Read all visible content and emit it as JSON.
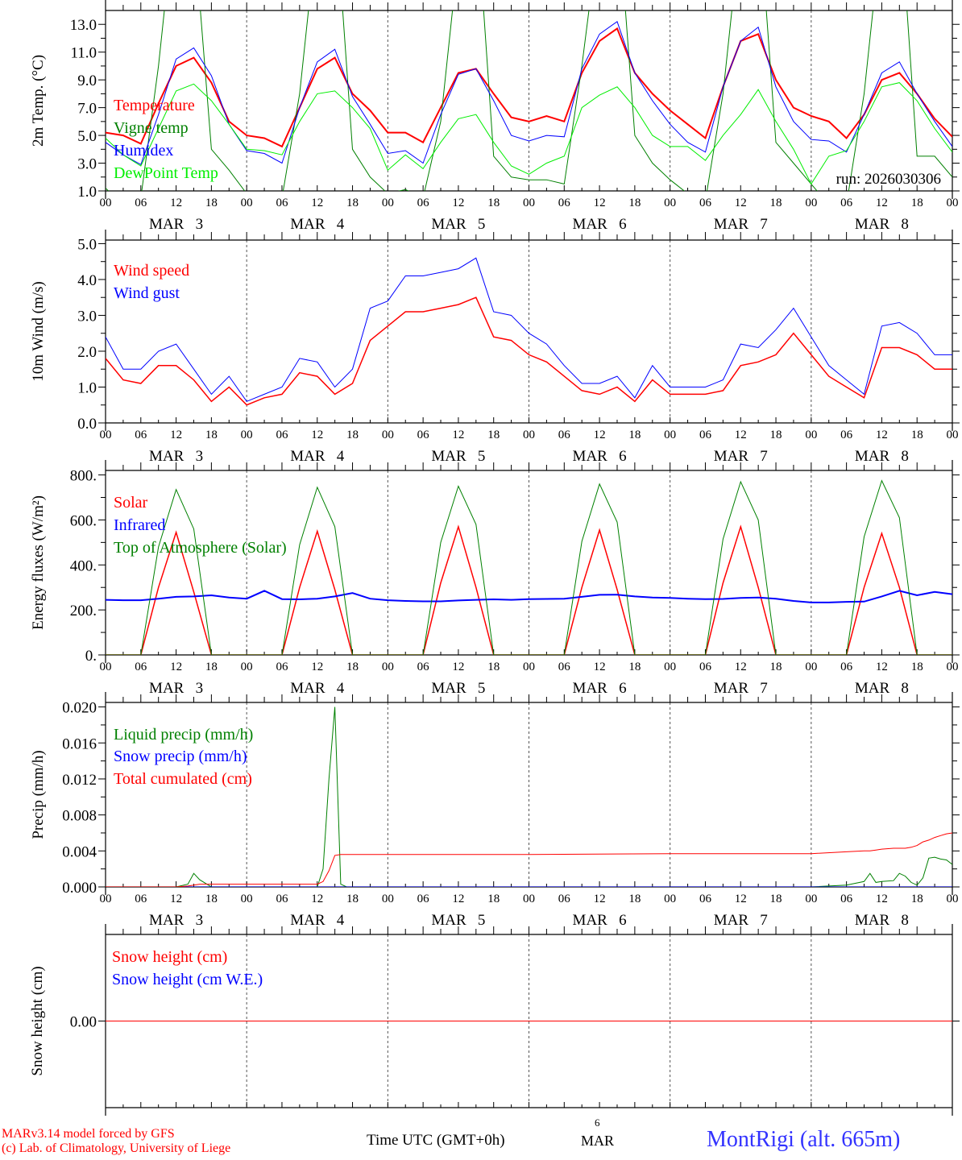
{
  "colors": {
    "red": "#ff0000",
    "blue": "#0000ff",
    "dark_green": "#008000",
    "lime": "#00ee00",
    "axis": "#000000"
  },
  "run_label": "run: 2026030306",
  "hour_labels": [
    "00",
    "06",
    "12",
    "18"
  ],
  "day_labels": [
    "MAR   3",
    "MAR   4",
    "MAR   5",
    "MAR   6",
    "MAR   7",
    "MAR   8"
  ],
  "footer": {
    "model": "MARv3.14 model forced by GFS",
    "credit": "(c) Lab. of Climatology, University of Liege",
    "xlabel": "Time UTC (GMT+0h)",
    "center_day": "6",
    "center_month": "MAR",
    "station": "MontRigi (alt. 665m)"
  },
  "chart_data": [
    {
      "type": "line",
      "id": "temperature",
      "ylabel": "2m Temp. (°C)",
      "ylim": [
        1,
        14
      ],
      "yticks": [
        1,
        3,
        5,
        7,
        9,
        11,
        13
      ],
      "ytick_labels": [
        "1.0",
        "3.0",
        "5.0",
        "7.0",
        "9.0",
        "11.0",
        "13.0"
      ],
      "x_hours_step": 3,
      "series": [
        {
          "name": "Temperature",
          "color": "#ff0000",
          "width": 2,
          "values": [
            5.2,
            5.0,
            4.4,
            7.3,
            10.0,
            10.6,
            8.8,
            6.0,
            5.0,
            4.8,
            4.2,
            7.0,
            9.8,
            10.6,
            8.0,
            6.8,
            5.2,
            5.2,
            4.5,
            7.0,
            9.5,
            9.8,
            8.0,
            6.3,
            6.0,
            6.4,
            6.0,
            9.5,
            11.8,
            12.7,
            9.5,
            8.0,
            6.8,
            5.8,
            4.8,
            8.5,
            11.8,
            12.3,
            9.0,
            7.0,
            6.4,
            6.0,
            4.8,
            6.5,
            9.0,
            9.5,
            8.0,
            6.2,
            4.9
          ]
        },
        {
          "name": "Vigne temp",
          "color": "#008000",
          "width": 1,
          "values": [
            1.2,
            0,
            0.5,
            10,
            22,
            20,
            4.0,
            2.5,
            0.8,
            0.5,
            0.5,
            8,
            20,
            22,
            4.0,
            2.0,
            0.8,
            1.1,
            0.5,
            6,
            18,
            22,
            3.5,
            2.0,
            1.8,
            1.8,
            1.5,
            10,
            20,
            22,
            5,
            3,
            1.8,
            0.8,
            0.3,
            8,
            20,
            22,
            4.5,
            3.0,
            1.5,
            0,
            0,
            8,
            20,
            22,
            3.5,
            3.5,
            2.0
          ]
        },
        {
          "name": "Humidex",
          "color": "#0000ff",
          "width": 1,
          "values": [
            4.5,
            3.6,
            2.9,
            6.5,
            10.5,
            11.3,
            9.3,
            5.8,
            3.9,
            3.7,
            3.0,
            7.0,
            10.3,
            11.2,
            7.8,
            5.8,
            3.7,
            3.9,
            3.0,
            6.5,
            9.4,
            9.8,
            7.5,
            5.0,
            4.6,
            5.0,
            4.9,
            9.8,
            12.3,
            13.2,
            9.5,
            7.5,
            5.8,
            4.5,
            3.8,
            8.5,
            11.8,
            12.8,
            8.5,
            6.0,
            4.7,
            4.6,
            3.8,
            6.5,
            9.5,
            10.3,
            8.0,
            6.0,
            4.2
          ]
        },
        {
          "name": "DewPoint Temp",
          "color": "#00ee00",
          "width": 1,
          "values": [
            4.8,
            3.6,
            2.8,
            5.5,
            8.2,
            8.7,
            7.5,
            5.8,
            4.0,
            3.9,
            3.6,
            6.0,
            8.0,
            8.2,
            7.0,
            5.5,
            2.5,
            3.6,
            2.6,
            4.5,
            6.2,
            6.5,
            4.5,
            2.8,
            2.2,
            3.0,
            3.5,
            7.0,
            7.9,
            8.5,
            7.0,
            5.0,
            4.2,
            4.2,
            3.2,
            5.0,
            6.5,
            8.3,
            6.0,
            4.0,
            1.5,
            3.5,
            3.9,
            6.0,
            8.5,
            8.8,
            7.5,
            5.5,
            3.8
          ]
        }
      ]
    },
    {
      "type": "line",
      "id": "wind",
      "ylabel": "10m Wind (m/s)",
      "ylim": [
        0,
        5.1
      ],
      "yticks": [
        0,
        1,
        2,
        3,
        4,
        5
      ],
      "ytick_labels": [
        "0.0",
        "1.0",
        "2.0",
        "3.0",
        "4.0",
        "5.0"
      ],
      "x_hours_step": 3,
      "series": [
        {
          "name": "Wind speed",
          "color": "#ff0000",
          "width": 1.5,
          "values": [
            1.8,
            1.2,
            1.1,
            1.6,
            1.6,
            1.2,
            0.6,
            1.0,
            0.5,
            0.7,
            0.8,
            1.4,
            1.3,
            0.8,
            1.1,
            2.3,
            2.7,
            3.1,
            3.1,
            3.2,
            3.3,
            3.5,
            2.4,
            2.3,
            1.9,
            1.7,
            1.3,
            0.9,
            0.8,
            1.0,
            0.6,
            1.2,
            0.8,
            0.8,
            0.8,
            0.9,
            1.6,
            1.7,
            1.9,
            2.5,
            1.9,
            1.3,
            1.0,
            0.7,
            2.1,
            2.1,
            1.9,
            1.5,
            1.5
          ]
        },
        {
          "name": "Wind gust",
          "color": "#0000ff",
          "width": 1,
          "values": [
            2.4,
            1.5,
            1.5,
            2.0,
            2.2,
            1.5,
            0.8,
            1.3,
            0.6,
            0.8,
            1.0,
            1.8,
            1.7,
            1.0,
            1.5,
            3.2,
            3.4,
            4.1,
            4.1,
            4.2,
            4.3,
            4.6,
            3.1,
            3.0,
            2.5,
            2.2,
            1.6,
            1.1,
            1.1,
            1.3,
            0.7,
            1.6,
            1.0,
            1.0,
            1.0,
            1.2,
            2.2,
            2.1,
            2.6,
            3.2,
            2.4,
            1.6,
            1.2,
            0.8,
            2.7,
            2.8,
            2.5,
            1.9,
            1.9
          ]
        }
      ]
    },
    {
      "type": "line",
      "id": "energy",
      "ylabel": "Energy fluxes (W/m²)",
      "ylim": [
        0,
        820
      ],
      "yticks": [
        0,
        200,
        400,
        600,
        800
      ],
      "ytick_labels": [
        "0.",
        "200.",
        "400.",
        "600.",
        "800."
      ],
      "x_hours_step": 3,
      "series": [
        {
          "name": "Solar",
          "color": "#ff0000",
          "width": 1.5,
          "values": [
            0,
            0,
            0,
            300,
            545,
            280,
            0,
            0,
            0,
            0,
            0,
            300,
            550,
            290,
            0,
            0,
            0,
            0,
            0,
            320,
            570,
            300,
            0,
            0,
            0,
            0,
            0,
            300,
            555,
            290,
            0,
            0,
            0,
            0,
            0,
            320,
            570,
            300,
            0,
            0,
            0,
            0,
            0,
            300,
            540,
            300,
            0,
            0,
            0
          ]
        },
        {
          "name": "Infrared",
          "color": "#0000ff",
          "width": 2,
          "values": [
            245,
            243,
            243,
            250,
            258,
            260,
            265,
            255,
            250,
            285,
            248,
            247,
            250,
            260,
            275,
            250,
            243,
            240,
            238,
            238,
            242,
            245,
            247,
            245,
            248,
            249,
            250,
            258,
            267,
            268,
            260,
            255,
            253,
            250,
            248,
            249,
            253,
            255,
            250,
            240,
            233,
            233,
            236,
            237,
            260,
            285,
            265,
            280,
            270
          ]
        },
        {
          "name": "Top of Atmosphere (Solar)",
          "color": "#008000",
          "width": 1,
          "values": [
            0,
            0,
            0,
            480,
            735,
            560,
            0,
            0,
            0,
            0,
            0,
            490,
            745,
            570,
            0,
            0,
            0,
            0,
            0,
            500,
            750,
            580,
            0,
            0,
            0,
            0,
            0,
            505,
            760,
            590,
            0,
            0,
            0,
            0,
            0,
            515,
            770,
            600,
            0,
            0,
            0,
            0,
            0,
            525,
            775,
            610,
            0,
            0,
            0
          ]
        }
      ]
    },
    {
      "type": "line",
      "id": "precip",
      "ylabel": "Precip (mm/h)",
      "ylim": [
        0,
        0.0205
      ],
      "yticks": [
        0,
        0.004,
        0.008,
        0.012,
        0.016,
        0.02
      ],
      "ytick_labels": [
        "0.000",
        "0.004",
        "0.008",
        "0.012",
        "0.016",
        "0.020"
      ],
      "x_hours": [
        0,
        12,
        14,
        15,
        16,
        18,
        24,
        36,
        37,
        38,
        39,
        40,
        41,
        42,
        48,
        72,
        96,
        120,
        126,
        129,
        130,
        131,
        132,
        134,
        135,
        136,
        137,
        138,
        139,
        140,
        141,
        142,
        143,
        144
      ],
      "series": [
        {
          "name": "Liquid precip (mm/h)",
          "color": "#008000",
          "width": 1,
          "values": [
            0,
            0,
            0.0003,
            0.0015,
            0.0008,
            0,
            0,
            0,
            0.002,
            0.012,
            0.02,
            0.0003,
            0,
            0,
            0,
            0,
            0,
            0,
            0.0002,
            0.0006,
            0.0015,
            0.0005,
            0.0006,
            0.0007,
            0.0015,
            0.0012,
            0.0005,
            0.0002,
            0.001,
            0.0032,
            0.0033,
            0.0031,
            0.003,
            0.0025
          ]
        },
        {
          "name": "Snow precip (mm/h)",
          "color": "#0000ff",
          "width": 1,
          "values": [
            0,
            0,
            0,
            0,
            0,
            0,
            0,
            0,
            0,
            0,
            0,
            0,
            0,
            0,
            0,
            0,
            0,
            0,
            0,
            0,
            0,
            0,
            0,
            0,
            0,
            0,
            0,
            0,
            0,
            0,
            0,
            0,
            0,
            0
          ]
        },
        {
          "name": "Total cumulated (cm)",
          "color": "#ff0000",
          "width": 1,
          "values": [
            0,
            0,
            0.0001,
            0.0002,
            0.0003,
            0.0003,
            0.0003,
            0.0003,
            0.0006,
            0.0018,
            0.0035,
            0.0036,
            0.0036,
            0.0036,
            0.0036,
            0.0036,
            0.0037,
            0.0037,
            0.0039,
            0.004,
            0.004,
            0.0041,
            0.0042,
            0.0043,
            0.0043,
            0.0043,
            0.0044,
            0.0046,
            0.005,
            0.0052,
            0.0055,
            0.0057,
            0.0059,
            0.006
          ]
        }
      ]
    },
    {
      "type": "line",
      "id": "snow",
      "ylabel": "Snow height (cm)",
      "ylim": [
        -1,
        1
      ],
      "yticks": [
        0
      ],
      "ytick_labels": [
        "0.00"
      ],
      "x_hours": [
        0,
        144
      ],
      "series": [
        {
          "name": "Snow height (cm)",
          "color": "#ff0000",
          "width": 1,
          "values": [
            0,
            0
          ]
        },
        {
          "name": "Snow height (cm W.E.)",
          "color": "#0000ff",
          "width": 1,
          "values": [
            0,
            0
          ],
          "hidden": true
        }
      ]
    }
  ]
}
